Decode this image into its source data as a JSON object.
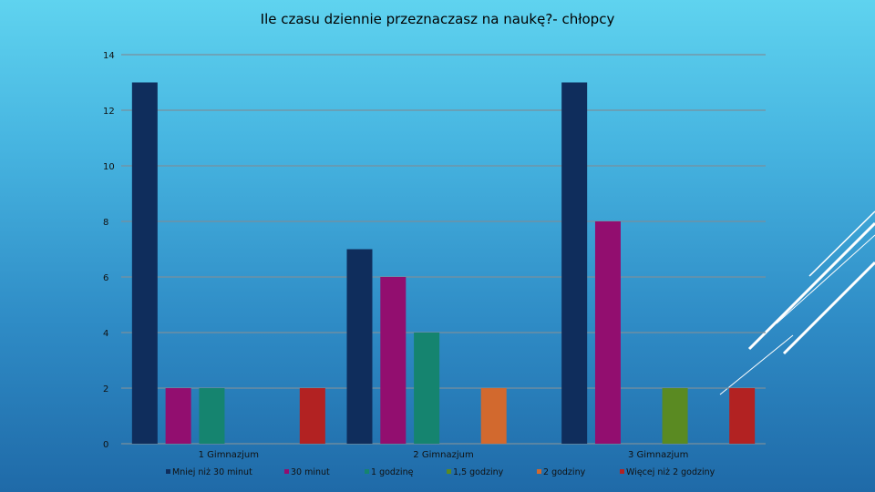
{
  "chart_data": {
    "type": "bar",
    "title": "Ile czasu dziennie przeznaczasz na naukę?- chłopcy",
    "xlabel": "",
    "ylabel": "",
    "ylim": [
      0,
      14
    ],
    "yticks": [
      0,
      2,
      4,
      6,
      8,
      10,
      12,
      14
    ],
    "grid": true,
    "legend_position": "bottom",
    "categories": [
      "1 Gimnazjum",
      "2 Gimnazjum",
      "3 Gimnazjum"
    ],
    "series": [
      {
        "name": "Mniej niż 30 minut",
        "color": "#0f2d5c",
        "values": [
          13,
          7,
          13
        ]
      },
      {
        "name": "30 minut",
        "color": "#920e6f",
        "values": [
          2,
          6,
          8
        ]
      },
      {
        "name": "1 godzinę",
        "color": "#15846f",
        "values": [
          2,
          4,
          0
        ]
      },
      {
        "name": "1,5 godziny",
        "color": "#5a8a22",
        "values": [
          0,
          0,
          2
        ]
      },
      {
        "name": "2 godziny",
        "color": "#d2692e",
        "values": [
          0,
          2,
          0
        ]
      },
      {
        "name": "Więcej niż 2 godziny",
        "color": "#b22222",
        "values": [
          2,
          0,
          2
        ]
      }
    ]
  }
}
